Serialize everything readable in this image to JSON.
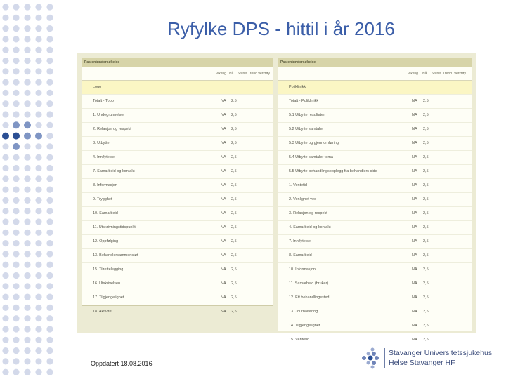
{
  "title": "Ryfylke DPS - hittil i år 2016",
  "footer_text": "Oppdatert 18.08.2016",
  "logo": {
    "line1": "Stavanger Universitetssjukehus",
    "line2": "Helse Stavanger HF"
  },
  "colors": {
    "title": "#3b5ea8",
    "panel_bg": "#ecebd4",
    "highlight": "#fbf6c4",
    "dot_light": "#d3d9ea",
    "dot_dark": "#2b4f94"
  },
  "left_panel": {
    "header": "Pasientundersøkelse",
    "columns": [
      "Vikting",
      "Nå",
      "Status",
      "Trend",
      "Verktøy"
    ],
    "rows": [
      {
        "name": "Logo",
        "v": "",
        "k": ""
      },
      {
        "name": "Totalt - Topp",
        "v": "NA",
        "k": "2,5"
      },
      {
        "name": "1. Undegrunnelser",
        "v": "NA",
        "k": "2,5"
      },
      {
        "name": "2. Relasjon og respekt",
        "v": "NA",
        "k": "2,5"
      },
      {
        "name": "3. Utbytte",
        "v": "NA",
        "k": "2,5"
      },
      {
        "name": "4. Innflytelse",
        "v": "NA",
        "k": "2,5"
      },
      {
        "name": "7. Samarbeid og kontakt",
        "v": "NA",
        "k": "2,5"
      },
      {
        "name": "8. Informasjon",
        "v": "NA",
        "k": "2,5"
      },
      {
        "name": "9. Trygghet",
        "v": "NA",
        "k": "2,5"
      },
      {
        "name": "10. Samarbeid",
        "v": "NA",
        "k": "2,5"
      },
      {
        "name": "11. Utskrivningstidspunkt",
        "v": "NA",
        "k": "2,5"
      },
      {
        "name": "12. Oppfølging",
        "v": "NA",
        "k": "2,5"
      },
      {
        "name": "13. Behandlersammenstøt",
        "v": "NA",
        "k": "2,5"
      },
      {
        "name": "15. Tilrettelegging",
        "v": "NA",
        "k": "2,5"
      },
      {
        "name": "16. Utskrivelsen",
        "v": "NA",
        "k": "2,5"
      },
      {
        "name": "17. Tilgjengelighet",
        "v": "NA",
        "k": "2,5"
      },
      {
        "name": "18. Aktivitet",
        "v": "NA",
        "k": "2,5"
      }
    ]
  },
  "right_panel": {
    "header": "Pasientundersøkelse",
    "columns": [
      "Vikting",
      "Nå",
      "Status",
      "Trend",
      "Verktøy"
    ],
    "rows": [
      {
        "name": "Poliklinikk",
        "v": "",
        "k": ""
      },
      {
        "name": "Totalt - Poliklinikk",
        "v": "NA",
        "k": "2,5"
      },
      {
        "name": "5.1 Utbytte resultater",
        "v": "NA",
        "k": "2,5"
      },
      {
        "name": "5.2 Utbytte samtaler",
        "v": "NA",
        "k": "2,5"
      },
      {
        "name": "5.3 Utbytte og gjennomføring",
        "v": "NA",
        "k": "2,5"
      },
      {
        "name": "5.4 Utbytte samtaler tema",
        "v": "NA",
        "k": "2,5"
      },
      {
        "name": "5.5 Utbytte behandlingsopplegg fra behandlers side",
        "v": "NA",
        "k": "2,5"
      },
      {
        "name": "1. Ventetid",
        "v": "NA",
        "k": "2,5"
      },
      {
        "name": "2. Venlighet ved",
        "v": "NA",
        "k": "2,5"
      },
      {
        "name": "3. Relasjon og respekt",
        "v": "NA",
        "k": "2,5"
      },
      {
        "name": "4. Samarbeid og kontakt",
        "v": "NA",
        "k": "2,5"
      },
      {
        "name": "7. Innflytelse",
        "v": "NA",
        "k": "2,5"
      },
      {
        "name": "8. Samarbeid",
        "v": "NA",
        "k": "2,5"
      },
      {
        "name": "10. Informasjon",
        "v": "NA",
        "k": "2,5"
      },
      {
        "name": "11. Samarbeid (bruker)",
        "v": "NA",
        "k": "2,5"
      },
      {
        "name": "12. Ett behandlingssted",
        "v": "NA",
        "k": "2,5"
      },
      {
        "name": "13. Journalføring",
        "v": "NA",
        "k": "2,5"
      },
      {
        "name": "14. Tilgjengelighet",
        "v": "NA",
        "k": "2,5"
      },
      {
        "name": "15. Ventetid",
        "v": "NA",
        "k": "2,5"
      }
    ]
  }
}
